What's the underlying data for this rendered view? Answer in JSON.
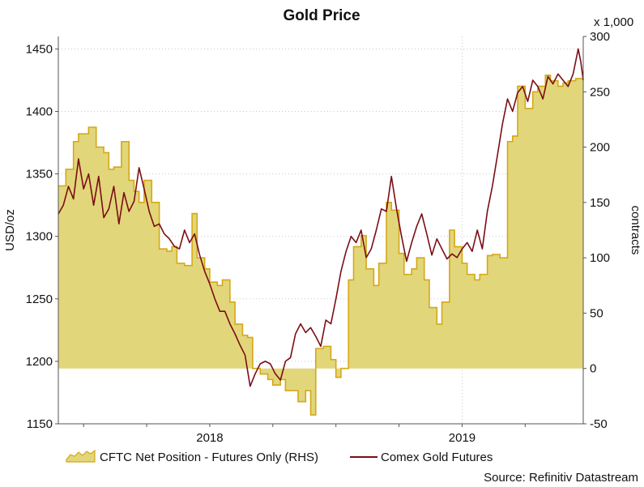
{
  "chart_data": {
    "type": "line+area",
    "title": "Gold Price",
    "ylabel_left": "USD/oz",
    "ylabel_right": "contracts",
    "right_multiplier": "x 1,000",
    "source": "Source: Refinitiv Datastream",
    "x_range": [
      2017.4,
      2019.48
    ],
    "ylim_left": [
      1150,
      1460
    ],
    "ylim_right": [
      -50,
      300
    ],
    "left_ticks": [
      "1150",
      "1200",
      "1250",
      "1300",
      "1350",
      "1400",
      "1450"
    ],
    "right_ticks": [
      "-50",
      "0",
      "50",
      "100",
      "150",
      "200",
      "250",
      "300"
    ],
    "x_tick_labels": [
      {
        "label": "2018",
        "x": 2018.0
      },
      {
        "label": "2019",
        "x": 2019.0
      }
    ],
    "legend": [
      {
        "label": "CFTC Net Position - Futures Only (RHS)",
        "type": "area"
      },
      {
        "label": "Comex Gold Futures",
        "type": "line"
      }
    ],
    "colors": {
      "area_fill": "#e2d67a",
      "area_edge": "#d4a817",
      "line": "#7a0e16",
      "grid": "#c8c8c8",
      "axis": "#555555"
    },
    "series": [
      {
        "name": "CFTC Net Position - Futures Only (RHS)",
        "axis": "right",
        "kind": "step-area",
        "x": [
          2017.4,
          2017.43,
          2017.46,
          2017.48,
          2017.52,
          2017.55,
          2017.58,
          2017.6,
          2017.62,
          2017.65,
          2017.68,
          2017.7,
          2017.72,
          2017.74,
          2017.77,
          2017.8,
          2017.83,
          2017.85,
          2017.87,
          2017.9,
          2017.93,
          2017.95,
          2017.98,
          2018.0,
          2018.03,
          2018.05,
          2018.08,
          2018.1,
          2018.13,
          2018.15,
          2018.17,
          2018.2,
          2018.23,
          2018.25,
          2018.28,
          2018.3,
          2018.32,
          2018.35,
          2018.38,
          2018.4,
          2018.42,
          2018.45,
          2018.48,
          2018.5,
          2018.52,
          2018.55,
          2018.57,
          2018.6,
          2018.62,
          2018.65,
          2018.67,
          2018.7,
          2018.72,
          2018.75,
          2018.77,
          2018.8,
          2018.82,
          2018.85,
          2018.87,
          2018.9,
          2018.92,
          2018.95,
          2018.97,
          2019.0,
          2019.02,
          2019.05,
          2019.07,
          2019.1,
          2019.12,
          2019.15,
          2019.18,
          2019.2,
          2019.22,
          2019.25,
          2019.28,
          2019.3,
          2019.33,
          2019.35,
          2019.38,
          2019.4,
          2019.42,
          2019.45,
          2019.48
        ],
        "values": [
          165,
          180,
          205,
          212,
          218,
          200,
          195,
          180,
          182,
          205,
          170,
          160,
          150,
          170,
          150,
          108,
          106,
          110,
          95,
          93,
          140,
          100,
          90,
          78,
          75,
          80,
          60,
          40,
          30,
          28,
          0,
          -5,
          -10,
          -15,
          -10,
          -20,
          -20,
          -30,
          -20,
          -42,
          18,
          20,
          8,
          -8,
          0,
          80,
          110,
          120,
          90,
          75,
          95,
          150,
          143,
          104,
          85,
          90,
          100,
          80,
          55,
          40,
          60,
          125,
          110,
          95,
          85,
          80,
          85,
          102,
          103,
          100,
          205,
          210,
          255,
          235,
          250,
          255,
          265,
          260,
          255,
          258,
          260,
          262,
          262
        ]
      },
      {
        "name": "Comex Gold Futures",
        "axis": "left",
        "kind": "line",
        "x": [
          2017.4,
          2017.42,
          2017.44,
          2017.46,
          2017.48,
          2017.5,
          2017.52,
          2017.54,
          2017.56,
          2017.58,
          2017.6,
          2017.62,
          2017.64,
          2017.66,
          2017.68,
          2017.7,
          2017.72,
          2017.74,
          2017.76,
          2017.78,
          2017.8,
          2017.82,
          2017.84,
          2017.86,
          2017.88,
          2017.9,
          2017.92,
          2017.94,
          2017.96,
          2017.98,
          2018.0,
          2018.02,
          2018.04,
          2018.06,
          2018.08,
          2018.1,
          2018.12,
          2018.14,
          2018.16,
          2018.18,
          2018.2,
          2018.22,
          2018.24,
          2018.26,
          2018.28,
          2018.3,
          2018.32,
          2018.34,
          2018.36,
          2018.38,
          2018.4,
          2018.42,
          2018.44,
          2018.46,
          2018.48,
          2018.5,
          2018.52,
          2018.54,
          2018.56,
          2018.58,
          2018.6,
          2018.62,
          2018.64,
          2018.66,
          2018.68,
          2018.7,
          2018.72,
          2018.74,
          2018.76,
          2018.78,
          2018.8,
          2018.82,
          2018.84,
          2018.86,
          2018.88,
          2018.9,
          2018.92,
          2018.94,
          2018.96,
          2018.98,
          2019.0,
          2019.02,
          2019.04,
          2019.06,
          2019.08,
          2019.1,
          2019.12,
          2019.14,
          2019.16,
          2019.18,
          2019.2,
          2019.22,
          2019.24,
          2019.26,
          2019.28,
          2019.3,
          2019.32,
          2019.34,
          2019.36,
          2019.38,
          2019.4,
          2019.42,
          2019.44,
          2019.46,
          2019.47,
          2019.48
        ],
        "values": [
          1318,
          1325,
          1340,
          1330,
          1362,
          1338,
          1350,
          1325,
          1348,
          1315,
          1322,
          1340,
          1310,
          1335,
          1320,
          1328,
          1355,
          1338,
          1320,
          1308,
          1310,
          1302,
          1298,
          1292,
          1290,
          1305,
          1295,
          1302,
          1285,
          1272,
          1262,
          1250,
          1240,
          1240,
          1230,
          1222,
          1213,
          1205,
          1180,
          1190,
          1198,
          1200,
          1198,
          1190,
          1185,
          1200,
          1203,
          1222,
          1230,
          1223,
          1227,
          1220,
          1212,
          1233,
          1230,
          1250,
          1272,
          1288,
          1300,
          1295,
          1305,
          1283,
          1290,
          1305,
          1322,
          1320,
          1348,
          1322,
          1300,
          1280,
          1295,
          1308,
          1318,
          1302,
          1285,
          1298,
          1290,
          1282,
          1286,
          1283,
          1290,
          1295,
          1288,
          1305,
          1290,
          1320,
          1340,
          1365,
          1390,
          1410,
          1400,
          1415,
          1420,
          1408,
          1425,
          1420,
          1410,
          1428,
          1422,
          1430,
          1425,
          1420,
          1430,
          1450,
          1440,
          1425
        ]
      }
    ]
  }
}
